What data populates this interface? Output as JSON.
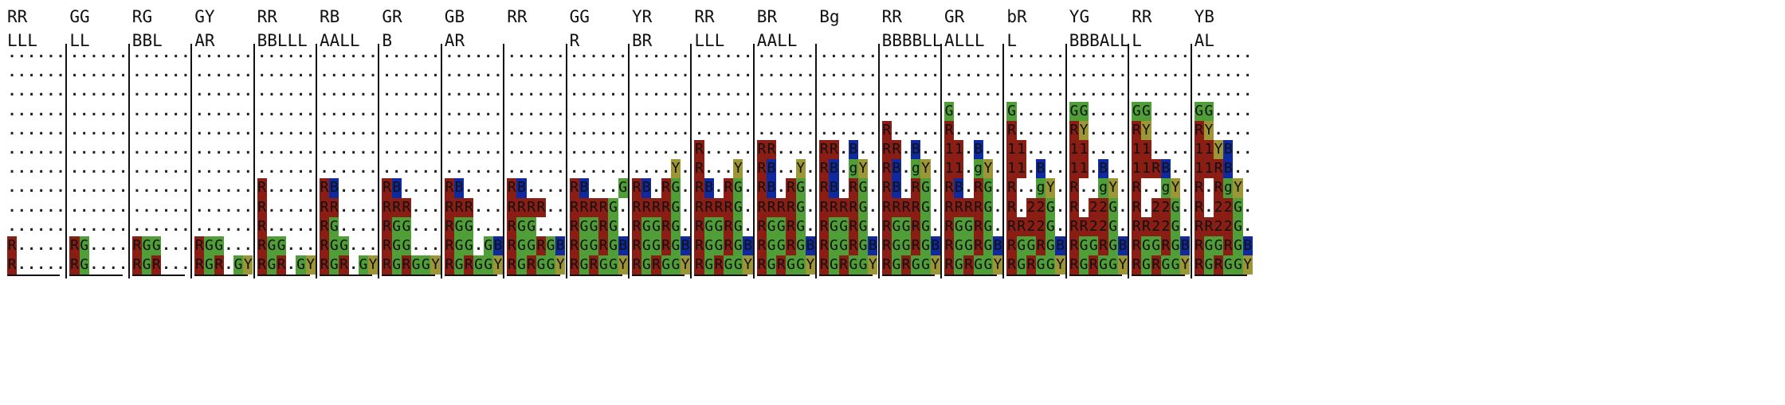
{
  "colors": {
    "R": "#8b1e14",
    "G": "#4f9e37",
    "B": "#0f2aa0",
    "Y": "#9c9636",
    "b": "#0f2aa0",
    "g": "#4f9e37"
  },
  "panels": [
    {
      "line1": "RR",
      "line2": "LLL",
      "grid": [
        "......",
        "......",
        "......",
        "......",
        "......",
        "......",
        "......",
        "......",
        "......",
        "......",
        "R.....",
        "R....."
      ]
    },
    {
      "line1": "GG",
      "line2": "LL",
      "grid": [
        "......",
        "......",
        "......",
        "......",
        "......",
        "......",
        "......",
        "......",
        "......",
        "......",
        "RG....",
        "RG....."
      ]
    },
    {
      "line1": "RG",
      "line2": "BBL",
      "grid": [
        "......",
        "......",
        "......",
        "......",
        "......",
        "......",
        "......",
        "......",
        "......",
        "......",
        "RGG...",
        "RGR..."
      ]
    },
    {
      "line1": "GY",
      "line2": "AR",
      "grid": [
        "......",
        "......",
        "......",
        "......",
        "......",
        "......",
        "......",
        "......",
        "......",
        "......",
        "RGG...",
        "RGR.GY"
      ]
    },
    {
      "line1": "RR",
      "line2": "BBLLL",
      "grid": [
        "......",
        "......",
        "......",
        "......",
        "......",
        "......",
        "......",
        "R.....",
        "R.....",
        "R.....",
        "RGG...",
        "RGR.GY"
      ]
    },
    {
      "line1": "RB",
      "line2": "AALL",
      "grid": [
        "......",
        "......",
        "......",
        "......",
        "......",
        "......",
        "......",
        "RB....",
        "RR....",
        "RG....",
        "RGG...",
        "RGR.GY"
      ]
    },
    {
      "line1": "GR",
      "line2": "B",
      "grid": [
        "......",
        "......",
        "......",
        "......",
        "......",
        "......",
        "......",
        "RB....",
        "RRR...",
        "RGG...",
        "RGG...",
        "RGRGGY"
      ]
    },
    {
      "line1": "GB",
      "line2": "AR",
      "grid": [
        "......",
        "......",
        "......",
        "......",
        "......",
        "......",
        "......",
        "RB....",
        "RRR...",
        "RGG...",
        "RGG.GB",
        "RGRGGY"
      ]
    },
    {
      "line1": "RR",
      "line2": "",
      "grid": [
        "......",
        "......",
        "......",
        "......",
        "......",
        "......",
        "......",
        "RB....",
        "RRRR..",
        "RGG...",
        "RGGRGB",
        "RGRGGY"
      ]
    },
    {
      "line1": "GG",
      "line2": "R",
      "grid": [
        "......",
        "......",
        "......",
        "......",
        "......",
        "......",
        "......",
        "RB...G",
        "RRRRG.",
        "RGGRG.",
        "RGGRGB",
        "RGRGGY"
      ]
    },
    {
      "line1": "YR",
      "line2": "BR",
      "grid": [
        "......",
        "......",
        "......",
        "......",
        "......",
        "......",
        "....Y.",
        "RB.RG.",
        "RRRRG.",
        "RGGRG.",
        "RGGRGB",
        "RGRGGY"
      ]
    },
    {
      "line1": "RR",
      "line2": "LLL",
      "grid": [
        "......",
        "......",
        "......",
        "......",
        "......",
        "R.....",
        "R...Y.",
        "RB.RG.",
        "RRRRG.",
        "RGGRG.",
        "RGGRGB",
        "RGRGGY"
      ]
    },
    {
      "line1": "BR",
      "line2": "AALL",
      "grid": [
        "......",
        "......",
        "......",
        "......",
        "......",
        "RR....",
        "RB..Y.",
        "RB.RG.",
        "RRRRG.",
        "RGGRG.",
        "RGGRGB",
        "RGRGGY"
      ]
    },
    {
      "line1": "Bg",
      "line2": "",
      "grid": [
        "......",
        "......",
        "......",
        "......",
        "......",
        "RR.B..",
        "RB.gY.",
        "RB.RG.",
        "RRRRG.",
        "RGGRG.",
        "RGGRGB",
        "RGRGGY"
      ]
    },
    {
      "line1": "RR",
      "line2": "BBBBLL",
      "grid": [
        "......",
        "......",
        "......",
        "......",
        "R.....",
        "RR.B..",
        "RB.gY.",
        "RB.RG.",
        "RRRRG.",
        "RGGRG.",
        "RGGRGB",
        "RGRGGY"
      ]
    },
    {
      "line1": "GR",
      "line2": "ALLL",
      "grid": [
        "......",
        "......",
        "......",
        "G.....",
        "R.....",
        "11.B..",
        "11.gY.",
        "RB.RG.",
        "RRRRG.",
        "RGGRG.",
        "RGGRGB",
        "RGRGGY"
      ]
    },
    {
      "line1": "bR",
      "line2": "L",
      "grid": [
        "......",
        "......",
        "......",
        "G.....",
        "R.....",
        "11....",
        "11.B..",
        "R..gY.",
        "R.22G.",
        "RR22G.",
        "RGGRGB",
        "RGRGGY"
      ]
    },
    {
      "line1": "YG",
      "line2": "BBBALL",
      "grid": [
        "......",
        "......",
        "......",
        "GG....",
        "RY....",
        "11....",
        "11.B..",
        "R..gY.",
        "R.22G.",
        "RR22G.",
        "RGGRGB",
        "RGRGGY"
      ]
    },
    {
      "line1": "RR",
      "line2": "L",
      "grid": [
        "......",
        "......",
        "......",
        "GG....",
        "RY....",
        "11....",
        "11RB..",
        "R..gY.",
        "R.22G.",
        "RR22G.",
        "RGGRGB",
        "RGRGGY"
      ]
    },
    {
      "line1": "YB",
      "line2": "AL",
      "grid": [
        "......",
        "......",
        "......",
        "GG....",
        "RY....",
        "11YB..",
        "11RB..",
        "R.RgY.",
        "R.22G.",
        "RR22G.",
        "RGGRGB",
        "RGRGGY"
      ]
    }
  ]
}
